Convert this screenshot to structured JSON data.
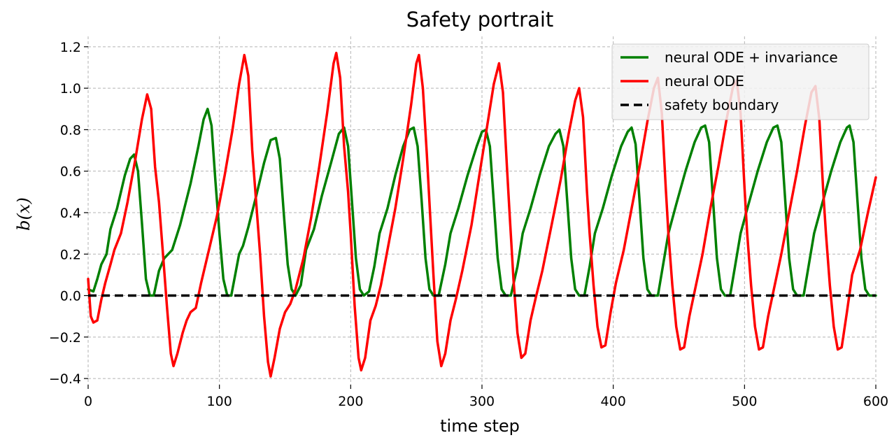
{
  "chart_data": {
    "type": "line",
    "title": "Safety portrait",
    "xlabel": "time step",
    "ylabel": "b(x)",
    "xlim": [
      0,
      600
    ],
    "ylim": [
      -0.43,
      1.25
    ],
    "xticks": [
      0,
      100,
      200,
      300,
      400,
      500,
      600
    ],
    "xtick_labels": [
      "0",
      "100",
      "200",
      "300",
      "400",
      "500",
      "600"
    ],
    "yticks": [
      -0.4,
      -0.2,
      0.0,
      0.2,
      0.4,
      0.6,
      0.8,
      1.0,
      1.2
    ],
    "ytick_labels": [
      "−0.4",
      "−0.2",
      "0.0",
      "0.2",
      "0.4",
      "0.6",
      "0.8",
      "1.0",
      "1.2"
    ],
    "grid": true,
    "legend_position": "top-right",
    "series": [
      {
        "name": "neural ODE + invariance",
        "color": "#008000",
        "style": "solid",
        "points": [
          [
            0,
            0.03
          ],
          [
            4,
            0.02
          ],
          [
            7,
            0.08
          ],
          [
            10,
            0.15
          ],
          [
            14,
            0.2
          ],
          [
            17,
            0.32
          ],
          [
            22,
            0.42
          ],
          [
            28,
            0.58
          ],
          [
            32,
            0.66
          ],
          [
            35,
            0.68
          ],
          [
            38,
            0.6
          ],
          [
            41,
            0.35
          ],
          [
            44,
            0.08
          ],
          [
            47,
            0.0
          ],
          [
            50,
            0.0
          ],
          [
            54,
            0.12
          ],
          [
            58,
            0.18
          ],
          [
            64,
            0.22
          ],
          [
            70,
            0.34
          ],
          [
            78,
            0.54
          ],
          [
            84,
            0.72
          ],
          [
            88,
            0.85
          ],
          [
            91,
            0.9
          ],
          [
            94,
            0.82
          ],
          [
            97,
            0.55
          ],
          [
            100,
            0.3
          ],
          [
            103,
            0.08
          ],
          [
            106,
            0.0
          ],
          [
            109,
            0.0
          ],
          [
            112,
            0.1
          ],
          [
            115,
            0.2
          ],
          [
            118,
            0.24
          ],
          [
            122,
            0.33
          ],
          [
            128,
            0.48
          ],
          [
            134,
            0.64
          ],
          [
            139,
            0.75
          ],
          [
            143,
            0.76
          ],
          [
            146,
            0.66
          ],
          [
            149,
            0.4
          ],
          [
            152,
            0.15
          ],
          [
            155,
            0.03
          ],
          [
            158,
            0.0
          ],
          [
            162,
            0.05
          ],
          [
            166,
            0.22
          ],
          [
            172,
            0.32
          ],
          [
            178,
            0.48
          ],
          [
            185,
            0.64
          ],
          [
            191,
            0.78
          ],
          [
            195,
            0.81
          ],
          [
            198,
            0.72
          ],
          [
            201,
            0.45
          ],
          [
            204,
            0.18
          ],
          [
            207,
            0.03
          ],
          [
            210,
            0.0
          ],
          [
            214,
            0.02
          ],
          [
            218,
            0.14
          ],
          [
            222,
            0.3
          ],
          [
            228,
            0.42
          ],
          [
            234,
            0.58
          ],
          [
            240,
            0.72
          ],
          [
            245,
            0.8
          ],
          [
            248,
            0.81
          ],
          [
            251,
            0.72
          ],
          [
            254,
            0.46
          ],
          [
            257,
            0.18
          ],
          [
            260,
            0.03
          ],
          [
            263,
            0.0
          ],
          [
            267,
            0.0
          ],
          [
            272,
            0.15
          ],
          [
            276,
            0.3
          ],
          [
            282,
            0.42
          ],
          [
            289,
            0.58
          ],
          [
            296,
            0.72
          ],
          [
            300,
            0.79
          ],
          [
            303,
            0.8
          ],
          [
            306,
            0.72
          ],
          [
            309,
            0.45
          ],
          [
            312,
            0.18
          ],
          [
            315,
            0.03
          ],
          [
            318,
            0.0
          ],
          [
            322,
            0.0
          ],
          [
            327,
            0.14
          ],
          [
            331,
            0.3
          ],
          [
            337,
            0.42
          ],
          [
            344,
            0.58
          ],
          [
            351,
            0.72
          ],
          [
            356,
            0.78
          ],
          [
            359,
            0.8
          ],
          [
            362,
            0.72
          ],
          [
            365,
            0.45
          ],
          [
            368,
            0.18
          ],
          [
            371,
            0.03
          ],
          [
            374,
            0.0
          ],
          [
            378,
            0.0
          ],
          [
            382,
            0.14
          ],
          [
            386,
            0.3
          ],
          [
            392,
            0.42
          ],
          [
            399,
            0.58
          ],
          [
            406,
            0.72
          ],
          [
            411,
            0.79
          ],
          [
            414,
            0.81
          ],
          [
            417,
            0.73
          ],
          [
            420,
            0.46
          ],
          [
            423,
            0.18
          ],
          [
            426,
            0.03
          ],
          [
            429,
            0.0
          ],
          [
            434,
            0.0
          ],
          [
            438,
            0.15
          ],
          [
            442,
            0.3
          ],
          [
            448,
            0.44
          ],
          [
            455,
            0.6
          ],
          [
            462,
            0.74
          ],
          [
            467,
            0.81
          ],
          [
            470,
            0.82
          ],
          [
            473,
            0.74
          ],
          [
            476,
            0.46
          ],
          [
            479,
            0.18
          ],
          [
            482,
            0.03
          ],
          [
            485,
            0.0
          ],
          [
            489,
            0.0
          ],
          [
            493,
            0.15
          ],
          [
            497,
            0.3
          ],
          [
            503,
            0.44
          ],
          [
            510,
            0.6
          ],
          [
            517,
            0.74
          ],
          [
            522,
            0.81
          ],
          [
            525,
            0.82
          ],
          [
            528,
            0.74
          ],
          [
            531,
            0.46
          ],
          [
            534,
            0.18
          ],
          [
            537,
            0.03
          ],
          [
            540,
            0.0
          ],
          [
            545,
            0.0
          ],
          [
            549,
            0.15
          ],
          [
            553,
            0.3
          ],
          [
            559,
            0.44
          ],
          [
            566,
            0.6
          ],
          [
            573,
            0.74
          ],
          [
            578,
            0.81
          ],
          [
            580,
            0.82
          ],
          [
            583,
            0.74
          ],
          [
            586,
            0.46
          ],
          [
            589,
            0.18
          ],
          [
            592,
            0.03
          ],
          [
            595,
            0.0
          ],
          [
            600,
            0.0
          ]
        ]
      },
      {
        "name": "neural ODE",
        "color": "#ff0000",
        "style": "solid",
        "points": [
          [
            0,
            0.08
          ],
          [
            2,
            -0.1
          ],
          [
            4,
            -0.13
          ],
          [
            7,
            -0.12
          ],
          [
            10,
            -0.02
          ],
          [
            13,
            0.06
          ],
          [
            17,
            0.15
          ],
          [
            20,
            0.22
          ],
          [
            25,
            0.3
          ],
          [
            30,
            0.45
          ],
          [
            36,
            0.66
          ],
          [
            41,
            0.85
          ],
          [
            45,
            0.97
          ],
          [
            48,
            0.9
          ],
          [
            51,
            0.62
          ],
          [
            54,
            0.45
          ],
          [
            57,
            0.2
          ],
          [
            60,
            -0.05
          ],
          [
            63,
            -0.28
          ],
          [
            65,
            -0.34
          ],
          [
            68,
            -0.28
          ],
          [
            72,
            -0.18
          ],
          [
            75,
            -0.12
          ],
          [
            78,
            -0.08
          ],
          [
            82,
            -0.06
          ],
          [
            86,
            0.06
          ],
          [
            92,
            0.22
          ],
          [
            98,
            0.38
          ],
          [
            104,
            0.58
          ],
          [
            110,
            0.8
          ],
          [
            115,
            1.02
          ],
          [
            119,
            1.16
          ],
          [
            122,
            1.06
          ],
          [
            125,
            0.7
          ],
          [
            128,
            0.45
          ],
          [
            131,
            0.2
          ],
          [
            134,
            -0.1
          ],
          [
            137,
            -0.32
          ],
          [
            139,
            -0.39
          ],
          [
            142,
            -0.3
          ],
          [
            146,
            -0.16
          ],
          [
            150,
            -0.08
          ],
          [
            154,
            -0.04
          ],
          [
            158,
            0.03
          ],
          [
            164,
            0.18
          ],
          [
            170,
            0.38
          ],
          [
            176,
            0.62
          ],
          [
            182,
            0.88
          ],
          [
            187,
            1.12
          ],
          [
            189,
            1.17
          ],
          [
            192,
            1.05
          ],
          [
            195,
            0.72
          ],
          [
            198,
            0.5
          ],
          [
            200,
            0.3
          ],
          [
            203,
            -0.05
          ],
          [
            206,
            -0.3
          ],
          [
            208,
            -0.36
          ],
          [
            211,
            -0.3
          ],
          [
            215,
            -0.12
          ],
          [
            219,
            -0.05
          ],
          [
            223,
            0.05
          ],
          [
            228,
            0.22
          ],
          [
            234,
            0.42
          ],
          [
            240,
            0.66
          ],
          [
            246,
            0.92
          ],
          [
            250,
            1.12
          ],
          [
            252,
            1.16
          ],
          [
            255,
            1.0
          ],
          [
            258,
            0.68
          ],
          [
            260,
            0.45
          ],
          [
            263,
            0.1
          ],
          [
            266,
            -0.22
          ],
          [
            269,
            -0.34
          ],
          [
            272,
            -0.28
          ],
          [
            276,
            -0.12
          ],
          [
            280,
            -0.02
          ],
          [
            285,
            0.12
          ],
          [
            292,
            0.34
          ],
          [
            298,
            0.58
          ],
          [
            304,
            0.82
          ],
          [
            309,
            1.02
          ],
          [
            313,
            1.12
          ],
          [
            316,
            0.98
          ],
          [
            319,
            0.62
          ],
          [
            321,
            0.4
          ],
          [
            324,
            0.08
          ],
          [
            327,
            -0.18
          ],
          [
            330,
            -0.3
          ],
          [
            333,
            -0.28
          ],
          [
            337,
            -0.12
          ],
          [
            341,
            -0.01
          ],
          [
            346,
            0.12
          ],
          [
            353,
            0.34
          ],
          [
            360,
            0.56
          ],
          [
            366,
            0.78
          ],
          [
            371,
            0.94
          ],
          [
            374,
            1.0
          ],
          [
            377,
            0.86
          ],
          [
            380,
            0.5
          ],
          [
            382,
            0.3
          ],
          [
            385,
            0.05
          ],
          [
            388,
            -0.15
          ],
          [
            391,
            -0.25
          ],
          [
            394,
            -0.24
          ],
          [
            398,
            -0.08
          ],
          [
            402,
            0.06
          ],
          [
            408,
            0.22
          ],
          [
            414,
            0.42
          ],
          [
            420,
            0.62
          ],
          [
            426,
            0.84
          ],
          [
            431,
            1.0
          ],
          [
            434,
            1.05
          ],
          [
            437,
            0.88
          ],
          [
            440,
            0.52
          ],
          [
            442,
            0.3
          ],
          [
            445,
            0.05
          ],
          [
            448,
            -0.15
          ],
          [
            451,
            -0.26
          ],
          [
            454,
            -0.25
          ],
          [
            458,
            -0.1
          ],
          [
            462,
            0.02
          ],
          [
            468,
            0.2
          ],
          [
            474,
            0.42
          ],
          [
            480,
            0.62
          ],
          [
            486,
            0.84
          ],
          [
            491,
            1.0
          ],
          [
            494,
            1.04
          ],
          [
            497,
            0.88
          ],
          [
            500,
            0.52
          ],
          [
            502,
            0.3
          ],
          [
            505,
            0.05
          ],
          [
            508,
            -0.15
          ],
          [
            511,
            -0.26
          ],
          [
            514,
            -0.25
          ],
          [
            518,
            -0.1
          ],
          [
            522,
            0.02
          ],
          [
            528,
            0.2
          ],
          [
            534,
            0.4
          ],
          [
            540,
            0.6
          ],
          [
            546,
            0.82
          ],
          [
            551,
            0.98
          ],
          [
            554,
            1.01
          ],
          [
            557,
            0.85
          ],
          [
            560,
            0.5
          ],
          [
            562,
            0.3
          ],
          [
            565,
            0.05
          ],
          [
            568,
            -0.15
          ],
          [
            571,
            -0.26
          ],
          [
            574,
            -0.25
          ],
          [
            578,
            -0.08
          ],
          [
            582,
            0.1
          ],
          [
            588,
            0.22
          ],
          [
            594,
            0.4
          ],
          [
            600,
            0.57
          ]
        ]
      },
      {
        "name": "safety boundary",
        "color": "#000000",
        "style": "dashed",
        "points": [
          [
            0,
            0.0
          ],
          [
            600,
            0.0
          ]
        ]
      }
    ]
  }
}
